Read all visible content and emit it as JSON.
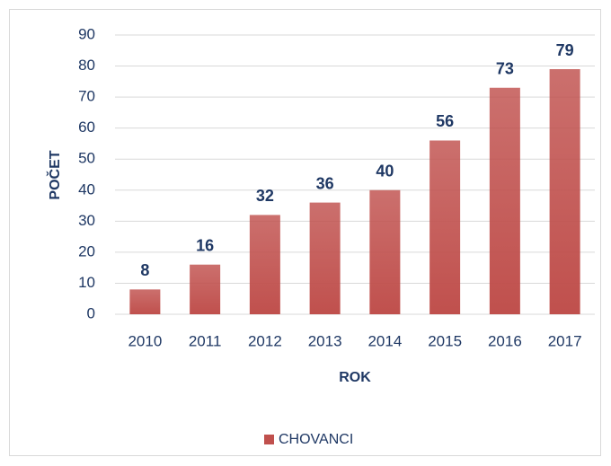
{
  "chart_data": {
    "type": "bar",
    "x_label": "ROK",
    "y_label": "POČET",
    "categories": [
      "2010",
      "2011",
      "2012",
      "2013",
      "2014",
      "2015",
      "2016",
      "2017"
    ],
    "series": [
      {
        "name": "CHOVANCI",
        "color": "#c0504d",
        "values": [
          8,
          16,
          32,
          36,
          40,
          56,
          73,
          79
        ]
      }
    ],
    "ylim": [
      0,
      90
    ],
    "yticks": [
      0,
      10,
      20,
      30,
      40,
      50,
      60,
      70,
      80,
      90
    ],
    "grid": true,
    "legend": "bottom"
  }
}
